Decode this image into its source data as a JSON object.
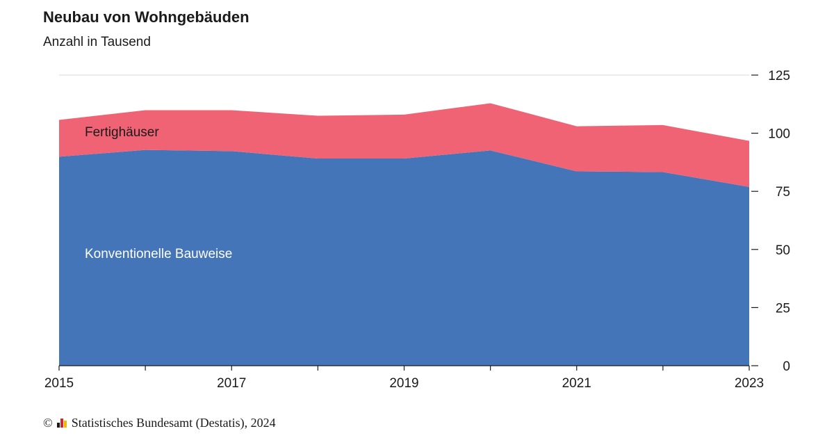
{
  "chart_data": {
    "type": "area",
    "title": "Neubau von Wohngebäuden",
    "subtitle": "Anzahl in Tausend",
    "x": [
      2015,
      2016,
      2017,
      2018,
      2019,
      2020,
      2021,
      2022,
      2023
    ],
    "x_tick_labels": [
      "2015",
      "2017",
      "2019",
      "2021",
      "2023"
    ],
    "y_ticks": [
      0,
      25,
      50,
      75,
      100,
      125
    ],
    "ylim": [
      0,
      125
    ],
    "y_axis_side": "right",
    "stacked": true,
    "series": [
      {
        "name": "Konventionelle Bauweise",
        "color": "#4475b8",
        "values": [
          89.9,
          92.8,
          92.3,
          89.1,
          89.1,
          92.6,
          83.6,
          83.3,
          76.9
        ]
      },
      {
        "name": "Fertighäuser",
        "color": "#f06374",
        "values": [
          15.8,
          17.1,
          17.6,
          18.4,
          18.9,
          20.3,
          19.4,
          20.2,
          19.8
        ]
      }
    ],
    "legend": "inline labels in areas"
  },
  "footer": {
    "copyright_symbol": "©",
    "source": "Statistisches Bundesamt (Destatis), 2024"
  }
}
